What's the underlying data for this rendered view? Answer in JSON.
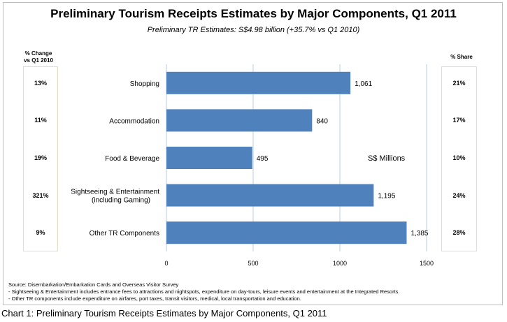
{
  "chart_data": {
    "type": "bar",
    "orientation": "horizontal",
    "title": "Preliminary Tourism Receipts Estimates by Major Components, Q1 2011",
    "subtitle": "Preliminary TR Estimates: S$4.98 billion (+35.7% vs Q1 2010)",
    "categories": [
      "Shopping",
      "Accommodation",
      "Food & Beverage",
      "Sightseeing & Entertainment (including Gaming)",
      "Other TR Components"
    ],
    "category_lines": [
      [
        "Shopping"
      ],
      [
        "Accommodation"
      ],
      [
        "Food & Beverage"
      ],
      [
        "Sightseeing & Entertainment",
        "(including Gaming)"
      ],
      [
        "Other TR Components"
      ]
    ],
    "values": [
      1061,
      840,
      495,
      1195,
      1385
    ],
    "value_labels": [
      "1,061",
      "840",
      "495",
      "1,195",
      "1,385"
    ],
    "unit_label": "S$ Millions",
    "xlim": [
      0,
      1500
    ],
    "xticks": [
      0,
      500,
      1000,
      1500
    ],
    "grid": true,
    "bar_color": "#4f81bd",
    "grid_color": "#b9cde5",
    "pct_change_header": [
      "% Change",
      "vs Q1 2010"
    ],
    "pct_change": [
      "13%",
      "11%",
      "19%",
      "321%",
      "9%"
    ],
    "pct_share_header": "% Share",
    "pct_share": [
      "21%",
      "17%",
      "10%",
      "24%",
      "28%"
    ]
  },
  "notes": [
    "Source: Disembarkation/Embarkation  Cards  and  Overseas Visitor  Survey",
    "- Sightseeing & Entertainment  includes entrance fees to attractions  and nightspots,  expenditure on day-tours,  leisure events and entertainment at the Integrated Resorts.",
    "- Other TR components include expenditure on airfares, port taxes, transit visitors, medical,  local transportation  and education."
  ],
  "caption": "Chart 1: Preliminary Tourism Receipts Estimates by Major Components, Q1 2011"
}
